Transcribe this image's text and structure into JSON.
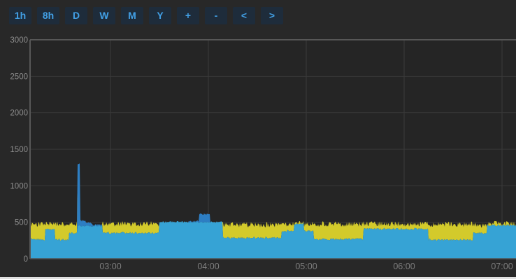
{
  "toolbar": {
    "buttons": [
      {
        "label": "1h"
      },
      {
        "label": "8h"
      },
      {
        "label": "D"
      },
      {
        "label": "W"
      },
      {
        "label": "M"
      },
      {
        "label": "Y"
      },
      {
        "label": "+"
      },
      {
        "label": "-"
      },
      {
        "label": "<"
      },
      {
        "label": ">"
      }
    ],
    "button_bg": "#1e2c3b",
    "button_text_color": "#42a0e6"
  },
  "chart_data": {
    "type": "area",
    "stacked": true,
    "title": "",
    "xlabel": "",
    "ylabel": "",
    "grid": true,
    "legend": "none",
    "y_axis": {
      "min": 0,
      "max": 3000,
      "tick_step": 500,
      "tick_labels": [
        "0",
        "500",
        "1000",
        "1500",
        "2000",
        "2500",
        "3000"
      ]
    },
    "x_axis": {
      "unit": "time-of-day",
      "ticks": [
        {
          "label": "03:00",
          "hour": 3
        },
        {
          "label": "04:00",
          "hour": 4
        },
        {
          "label": "05:00",
          "hour": 5
        },
        {
          "label": "06:00",
          "hour": 6
        },
        {
          "label": "07:00",
          "hour": 7
        }
      ],
      "visible_range": {
        "start_hour": 2.18,
        "end_hour": 7.14
      }
    },
    "series": [
      {
        "id": "base-cyan",
        "color": "#36a3d5"
      },
      {
        "id": "peak-blue",
        "color": "#2d7ec3"
      },
      {
        "id": "band-yellow",
        "color": "#d3ca2b"
      }
    ],
    "segments_note": "t0/t1 = minutes after 02:00; values are stacked series magnitudes (cyan bottom, blue middle, yellow top)",
    "segments": [
      {
        "t0": 10.7,
        "t1": 20,
        "cyan": 265,
        "blue": 0,
        "yellow": 210
      },
      {
        "t0": 20,
        "t1": 26,
        "cyan": 400,
        "blue": 0,
        "yellow": 80
      },
      {
        "t0": 26,
        "t1": 34.5,
        "cyan": 260,
        "blue": 0,
        "yellow": 215
      },
      {
        "t0": 34.5,
        "t1": 39.5,
        "cyan": 350,
        "blue": 0,
        "yellow": 130
      },
      {
        "t0": 39.5,
        "t1": 41.2,
        "cyan": 455,
        "blue": 845,
        "yellow": 0
      },
      {
        "t0": 41.2,
        "t1": 45,
        "cyan": 450,
        "blue": 75,
        "yellow": 0
      },
      {
        "t0": 45,
        "t1": 49,
        "cyan": 450,
        "blue": 40,
        "yellow": 0
      },
      {
        "t0": 49,
        "t1": 55,
        "cyan": 452,
        "blue": 15,
        "yellow": 0
      },
      {
        "t0": 55,
        "t1": 90,
        "cyan": 355,
        "blue": 0,
        "yellow": 125
      },
      {
        "t0": 90,
        "t1": 108,
        "cyan": 505,
        "blue": 0,
        "yellow": 0
      },
      {
        "t0": 108,
        "t1": 114.4,
        "cyan": 500,
        "blue": 15,
        "yellow": 0
      },
      {
        "t0": 114.4,
        "t1": 120.9,
        "cyan": 500,
        "blue": 112,
        "yellow": 0
      },
      {
        "t0": 120.9,
        "t1": 128.6,
        "cyan": 505,
        "blue": 0,
        "yellow": 0
      },
      {
        "t0": 128.6,
        "t1": 165,
        "cyan": 288,
        "blue": 0,
        "yellow": 178
      },
      {
        "t0": 165,
        "t1": 172.7,
        "cyan": 383,
        "blue": 0,
        "yellow": 88
      },
      {
        "t0": 172.7,
        "t1": 178.7,
        "cyan": 478,
        "blue": 0,
        "yellow": 12
      },
      {
        "t0": 178.7,
        "t1": 184.3,
        "cyan": 383,
        "blue": 0,
        "yellow": 88
      },
      {
        "t0": 184.3,
        "t1": 215,
        "cyan": 268,
        "blue": 0,
        "yellow": 207
      },
      {
        "t0": 215,
        "t1": 254.6,
        "cyan": 410,
        "blue": 0,
        "yellow": 68
      },
      {
        "t0": 254.6,
        "t1": 282.4,
        "cyan": 260,
        "blue": 0,
        "yellow": 212
      },
      {
        "t0": 282.4,
        "t1": 290.6,
        "cyan": 354,
        "blue": 0,
        "yellow": 104
      },
      {
        "t0": 290.6,
        "t1": 308.6,
        "cyan": 458,
        "blue": 0,
        "yellow": 25
      }
    ],
    "annotations": [
      {
        "type": "spike",
        "time_min_after_0200": 40,
        "peak_value": 1300,
        "color": "#2d7ec3"
      },
      {
        "type": "bump",
        "time_min_after_0200": 117,
        "peak_value": 615,
        "color": "#2d7ec3"
      }
    ]
  },
  "colors": {
    "page_bg": "#282828",
    "plot_bg": "#252525",
    "frame": "#575757",
    "gridline": "#3a3a3a",
    "y_label": "#8f8f8f",
    "x_label": "#7d7d7d",
    "bottom_strip": "#dfdfdf"
  }
}
